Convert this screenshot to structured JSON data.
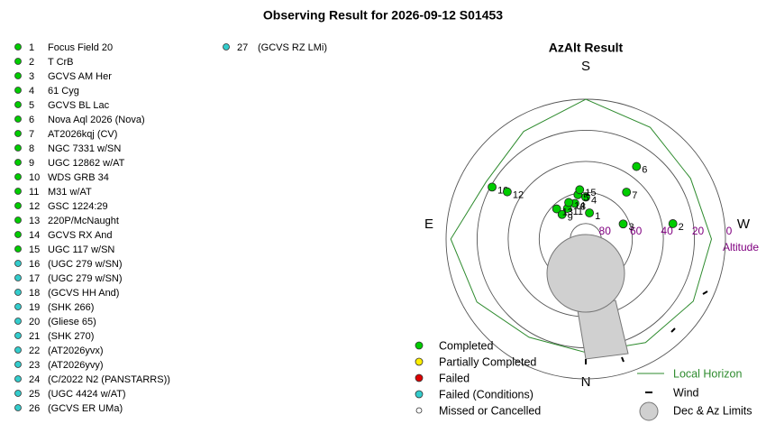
{
  "title": "Observing Result for 2026-09-12 S01453",
  "targets": [
    {
      "number": 1,
      "name": "Focus Field 20",
      "color": "#00cc00"
    },
    {
      "number": 2,
      "name": "T CrB",
      "color": "#00cc00"
    },
    {
      "number": 3,
      "name": "GCVS AM Her",
      "color": "#00cc00"
    },
    {
      "number": 4,
      "name": "61 Cyg",
      "color": "#00cc00"
    },
    {
      "number": 5,
      "name": "GCVS BL Lac",
      "color": "#00cc00"
    },
    {
      "number": 6,
      "name": "Nova Aql 2026 (Nova)",
      "color": "#00cc00"
    },
    {
      "number": 7,
      "name": "AT2026kqj (CV)",
      "color": "#00cc00"
    },
    {
      "number": 8,
      "name": "NGC 7331 w/SN",
      "color": "#00cc00"
    },
    {
      "number": 9,
      "name": "UGC 12862 w/AT",
      "color": "#00cc00"
    },
    {
      "number": 10,
      "name": "WDS GRB 34",
      "color": "#00cc00"
    },
    {
      "number": 11,
      "name": "M31 w/AT",
      "color": "#00cc00"
    },
    {
      "number": 12,
      "name": "GSC 1224:29",
      "color": "#00cc00"
    },
    {
      "number": 13,
      "name": "220P/McNaught",
      "color": "#00cc00"
    },
    {
      "number": 14,
      "name": "GCVS RX And",
      "color": "#00cc00"
    },
    {
      "number": 15,
      "name": "UGC 117 w/SN",
      "color": "#00cc00"
    },
    {
      "number": 16,
      "name": "(UGC 279 w/SN)",
      "color": "#33cccc"
    },
    {
      "number": 17,
      "name": "(UGC 279 w/SN)",
      "color": "#33cccc"
    },
    {
      "number": 18,
      "name": "(GCVS HH And)",
      "color": "#33cccc"
    },
    {
      "number": 19,
      "name": "(SHK 266)",
      "color": "#33cccc"
    },
    {
      "number": 20,
      "name": "(Gliese 65)",
      "color": "#33cccc"
    },
    {
      "number": 21,
      "name": "(SHK 270)",
      "color": "#33cccc"
    },
    {
      "number": 22,
      "name": "(AT2026yvx)",
      "color": "#33cccc"
    },
    {
      "number": 23,
      "name": "(AT2026yvy)",
      "color": "#33cccc"
    },
    {
      "number": 24,
      "name": "(C/2022 N2 (PANSTARRS))",
      "color": "#33cccc"
    },
    {
      "number": 25,
      "name": "(UGC 4424 w/AT)",
      "color": "#33cccc"
    },
    {
      "number": 26,
      "name": "(GCVS ER UMa)",
      "color": "#33cccc"
    },
    {
      "number": 27,
      "name": "(GCVS RZ LMi)",
      "color": "#33cccc"
    }
  ],
  "plot": {
    "title": "AzAlt Result",
    "directions": {
      "south": "S",
      "north": "N",
      "east": "E",
      "west": "W"
    },
    "altitude_label": "Altitude",
    "alt_range": [
      90,
      0
    ],
    "altitude_ticks": [
      80,
      60,
      40,
      20,
      0
    ],
    "points": [
      {
        "label": 1,
        "alt": 73,
        "az": 188
      },
      {
        "label": 2,
        "alt": 33,
        "az": 260
      },
      {
        "label": 3,
        "alt": 64,
        "az": 248
      },
      {
        "label": 4,
        "alt": 63,
        "az": 180
      },
      {
        "label": 5,
        "alt": 61,
        "az": 170
      },
      {
        "label": 6,
        "alt": 33,
        "az": 215
      },
      {
        "label": 7,
        "alt": 50,
        "az": 221
      },
      {
        "label": 8,
        "alt": 66,
        "az": 163
      },
      {
        "label": 9,
        "alt": 68,
        "az": 136
      },
      {
        "label": 10,
        "alt": 21,
        "az": 119
      },
      {
        "label": 11,
        "alt": 67,
        "az": 149
      },
      {
        "label": 12,
        "alt": 31,
        "az": 121
      },
      {
        "label": 13,
        "alt": 63,
        "az": 136
      },
      {
        "label": 14,
        "alt": 64,
        "az": 155
      },
      {
        "label": 15,
        "alt": 58,
        "az": 173
      }
    ],
    "point_color": "#00cc00",
    "horizon": {
      "color": "#2e8b2e",
      "az": [
        0,
        30,
        60,
        90,
        120,
        150,
        180,
        210,
        240,
        270,
        300,
        330
      ],
      "alt": [
        17,
        17,
        9,
        3,
        16,
        10,
        0,
        7,
        12,
        9,
        10,
        13
      ]
    }
  },
  "legend": [
    {
      "label": "Completed",
      "color": "#00cc00"
    },
    {
      "label": "Partially Completed",
      "color": "#ffee00"
    },
    {
      "label": "Failed",
      "color": "#dd0000"
    },
    {
      "label": "Failed (Conditions)",
      "color": "#33cccc"
    },
    {
      "label": "Missed or Cancelled",
      "color": "#ffffff"
    }
  ],
  "legend_right": [
    "Local Horizon",
    "Wind",
    "Dec & Az Limits"
  ]
}
